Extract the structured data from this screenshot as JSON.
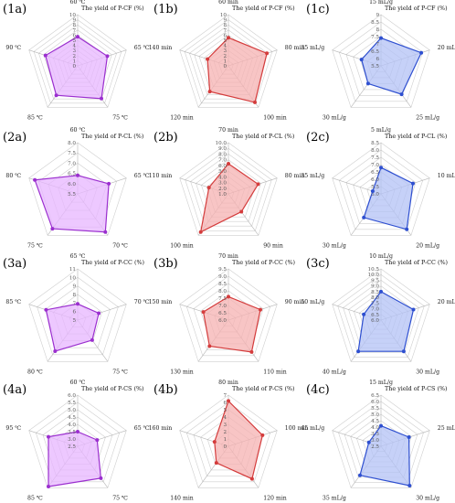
{
  "figure": {
    "chart_data": [
      {
        "panel_label": "(1a)",
        "type": "radar",
        "color": "#9b2fcf",
        "fill": "#e7b6ff",
        "title": "The yield of P-CF (%)",
        "categories": [
          "60 ℃",
          "65 ℃",
          "75 ℃",
          "85 ℃",
          "90 ℃"
        ],
        "ticks": [
          "0",
          "1",
          "2",
          "3",
          "4",
          "5",
          "6",
          "7",
          "8",
          "9",
          "10"
        ],
        "rmin": 0,
        "rmax": 10,
        "series": [
          {
            "values": [
              5.7,
              6.1,
              7.9,
              7.1,
              6.6
            ]
          }
        ]
      },
      {
        "panel_label": "(1b)",
        "type": "radar",
        "color": "#d43c3c",
        "fill": "#f6b1b1",
        "title": "The yield of P-CF (%)",
        "categories": [
          "60 min",
          "80 min",
          "100 min",
          "120 min",
          "140 min"
        ],
        "ticks": [
          "0",
          "1",
          "2",
          "3",
          "4",
          "5",
          "6",
          "7",
          "8",
          "9",
          "10"
        ],
        "rmin": 0,
        "rmax": 10,
        "series": [
          {
            "values": [
              5.5,
              7.9,
              8.8,
              6.2,
              4.3
            ]
          }
        ]
      },
      {
        "panel_label": "(1c)",
        "type": "radar",
        "color": "#2e4fd0",
        "fill": "#b3c2f5",
        "title": "The yield of P-CF (%)",
        "categories": [
          "15 mL/g",
          "20 mL/g",
          "25 mL/g",
          "30 mL/g",
          "35 mL/g"
        ],
        "ticks": [
          "5.5",
          "6",
          "6.5",
          "7",
          "7.5",
          "8",
          "8.5",
          "9"
        ],
        "rmin": 5.5,
        "rmax": 9,
        "series": [
          {
            "values": [
              7.4,
              8.4,
              7.9,
              7.0,
              6.9
            ]
          }
        ]
      },
      {
        "panel_label": "(2a)",
        "type": "radar",
        "color": "#9b2fcf",
        "fill": "#e7b6ff",
        "title": "The yield of P-CL (%)",
        "categories": [
          "60 ℃",
          "65 ℃",
          "70 ℃",
          "75 ℃",
          "80 ℃"
        ],
        "ticks": [
          "5.5",
          "6.0",
          "6.5",
          "7.0",
          "7.5",
          "8.0"
        ],
        "rmin": 5.5,
        "rmax": 8,
        "series": [
          {
            "values": [
              6.4,
              7.1,
              7.8,
              7.6,
              7.7
            ]
          }
        ]
      },
      {
        "panel_label": "(2b)",
        "type": "radar",
        "color": "#d43c3c",
        "fill": "#f6b1b1",
        "title": "The yield of P-CL (%)",
        "categories": [
          "70 min",
          "80 min",
          "90 min",
          "100 min",
          "110 min"
        ],
        "ticks": [
          "1.0",
          "2.0",
          "3.0",
          "4.0",
          "5.0",
          "6.0",
          "7.0",
          "8.0",
          "9.0",
          "10.0"
        ],
        "rmin": 0,
        "rmax": 10,
        "series": [
          {
            "values": [
              5.9,
              6.1,
              4.3,
              9.2,
              4.0
            ]
          }
        ]
      },
      {
        "panel_label": "(2c)",
        "type": "radar",
        "color": "#2e4fd0",
        "fill": "#b3c2f5",
        "title": "The yield of P-CL (%)",
        "categories": [
          "5 mL/g",
          "10 mL/g",
          "20 mL/g",
          "30 mL/g",
          "35 mL/g"
        ],
        "ticks": [
          "5.0",
          "5.5",
          "6.0",
          "6.5",
          "7.0",
          "7.5",
          "8.0",
          "8.5"
        ],
        "rmin": 5,
        "rmax": 8.5,
        "series": [
          {
            "values": [
              6.8,
              7.3,
              8.0,
              7.0,
              5.6
            ]
          }
        ]
      },
      {
        "panel_label": "(3a)",
        "type": "radar",
        "color": "#9b2fcf",
        "fill": "#e7b6ff",
        "title": "The yield of P-CC (%)",
        "categories": [
          "65 ℃",
          "70 ℃",
          "75 ℃",
          "80 ℃",
          "85 ℃"
        ],
        "ticks": [
          "5",
          "6",
          "7",
          "8",
          "9",
          "10",
          "11"
        ],
        "rmin": 5,
        "rmax": 11,
        "series": [
          {
            "values": [
              6.9,
              7.6,
              7.9,
              9.5,
              8.9
            ]
          }
        ]
      },
      {
        "panel_label": "(3b)",
        "type": "radar",
        "color": "#d43c3c",
        "fill": "#f6b1b1",
        "title": "The yield of P-CC (%)",
        "categories": [
          "70 min",
          "90 min",
          "110 min",
          "130 min",
          "150 min"
        ],
        "ticks": [
          "6.0",
          "6.5",
          "7.0",
          "7.5",
          "8.0",
          "8.5",
          "9.0",
          "9.5"
        ],
        "rmin": 6,
        "rmax": 9.5,
        "series": [
          {
            "values": [
              7.6,
              8.3,
              8.7,
              8.2,
              7.8
            ]
          }
        ]
      },
      {
        "panel_label": "(3c)",
        "type": "radar",
        "color": "#2e4fd0",
        "fill": "#b3c2f5",
        "title": "The yield of P-CC (%)",
        "categories": [
          "10 mL/g",
          "20 mL/g",
          "30 mL/g",
          "40 mL/g",
          "50 mL/g"
        ],
        "ticks": [
          "6.0",
          "6.5",
          "7.0",
          "7.5",
          "8.0",
          "8.5",
          "9.0",
          "9.5",
          "10.0",
          "10.5"
        ],
        "rmin": 6,
        "rmax": 10.5,
        "series": [
          {
            "values": [
              8.5,
              9.0,
              9.4,
              9.4,
              7.6
            ]
          }
        ]
      },
      {
        "panel_label": "(4a)",
        "type": "radar",
        "color": "#9b2fcf",
        "fill": "#e7b6ff",
        "title": "The yield of P-CS (%)",
        "categories": [
          "60 ℃",
          "65 ℃",
          "75 ℃",
          "85 ℃",
          "95 ℃"
        ],
        "ticks": [
          "2.5",
          "3.0",
          "3.5",
          "4.0",
          "4.5",
          "5.0",
          "5.5",
          "6.0"
        ],
        "rmin": 2.5,
        "rmax": 6,
        "series": [
          {
            "values": [
              3.5,
              3.9,
              5.2,
              5.9,
              4.6
            ]
          }
        ]
      },
      {
        "panel_label": "(4b)",
        "type": "radar",
        "color": "#d43c3c",
        "fill": "#f6b1b1",
        "title": "The yield of P-CS (%)",
        "categories": [
          "80 min",
          "100 min",
          "120 min",
          "140 min",
          "160 min"
        ],
        "ticks": [
          "0",
          "1",
          "2",
          "3",
          "4",
          "5",
          "6",
          "7"
        ],
        "rmin": 0,
        "rmax": 7,
        "series": [
          {
            "values": [
              6.2,
              4.9,
              5.5,
              2.8,
              2.0
            ]
          }
        ]
      },
      {
        "panel_label": "(4c)",
        "type": "radar",
        "color": "#2e4fd0",
        "fill": "#b3c2f5",
        "title": "The yield of P-CS (%)",
        "categories": [
          "15 mL/g",
          "25 mL/g",
          "30 mL/g",
          "35 mL/g",
          "45 mL/g"
        ],
        "ticks": [
          "2.5",
          "3.0",
          "3.5",
          "4.0",
          "4.5",
          "5.0",
          "5.5",
          "6.0",
          "6.5"
        ],
        "rmin": 2.5,
        "rmax": 6.5,
        "series": [
          {
            "values": [
              4.1,
              4.8,
              6.3,
              5.3,
              3.5
            ]
          }
        ]
      }
    ]
  }
}
